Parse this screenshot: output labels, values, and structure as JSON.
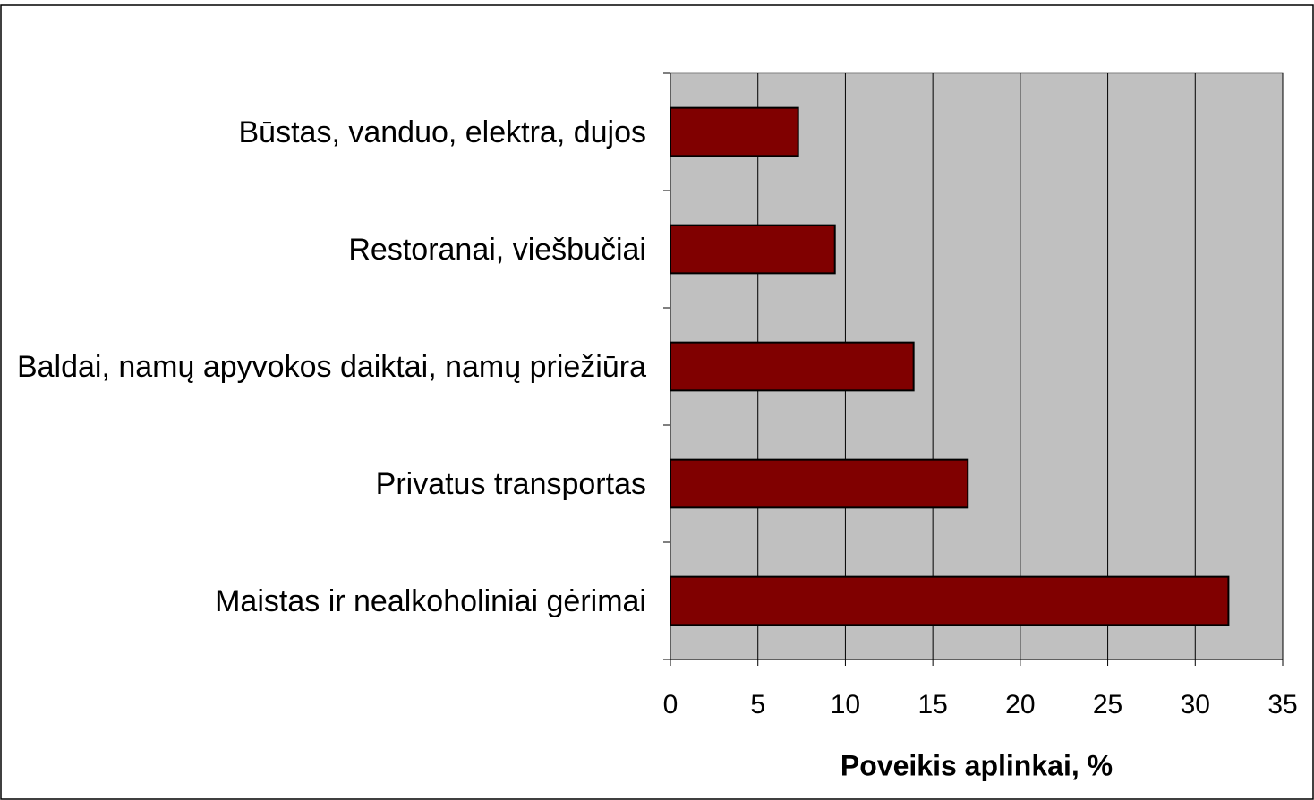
{
  "chart_data": {
    "type": "bar",
    "orientation": "horizontal",
    "x_label": "Poveikis aplinkai, %",
    "categories": [
      "Būstas, vanduo, elektra, dujos",
      "Restoranai, viešbučiai",
      "Baldai, namų apyvokos daiktai, namų priežiūra",
      "Privatus transportas",
      "Maistas ir nealkoholiniai gėrimai"
    ],
    "values": [
      7.3,
      9.4,
      13.9,
      17.0,
      31.9
    ],
    "color": "#800000",
    "xlim": [
      0,
      35
    ],
    "xticks": [
      0,
      5,
      10,
      15,
      20,
      25,
      30,
      35
    ],
    "grid": true
  }
}
